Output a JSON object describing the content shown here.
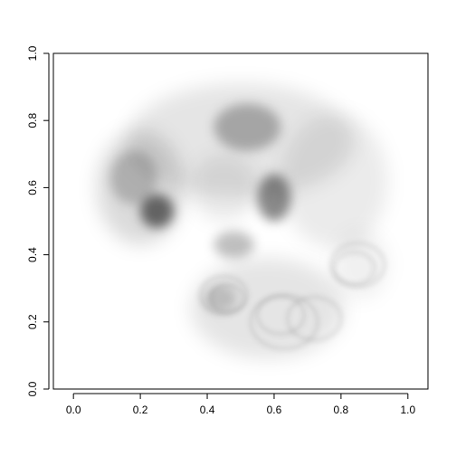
{
  "chart_data": {
    "type": "density",
    "xlim": [
      -0.06,
      1.06
    ],
    "ylim": [
      0.0,
      1.0
    ],
    "x_ticks": [
      0.0,
      0.2,
      0.4,
      0.6,
      0.8,
      1.0
    ],
    "y_ticks": [
      0.0,
      0.2,
      0.4,
      0.6,
      0.8,
      1.0
    ],
    "x_tick_labels": [
      "0.0",
      "0.2",
      "0.4",
      "0.6",
      "0.8",
      "1.0"
    ],
    "y_tick_labels": [
      "0.0",
      "0.2",
      "0.4",
      "0.6",
      "0.8",
      "1.0"
    ],
    "grid": false,
    "legend": "none",
    "colors": {
      "ink": "#000000",
      "axis": "#000000",
      "background": "#ffffff"
    },
    "overall_region": {
      "x_range": [
        0.05,
        0.97
      ],
      "y_range": [
        0.07,
        0.95
      ]
    },
    "dense_regions": [
      {
        "x": 0.52,
        "y": 0.78,
        "rx": 0.1,
        "ry": 0.07,
        "opacity": 0.28
      },
      {
        "x": 0.6,
        "y": 0.57,
        "rx": 0.05,
        "ry": 0.07,
        "opacity": 0.45
      },
      {
        "x": 0.25,
        "y": 0.53,
        "rx": 0.05,
        "ry": 0.05,
        "opacity": 0.55
      },
      {
        "x": 0.18,
        "y": 0.63,
        "rx": 0.07,
        "ry": 0.08,
        "opacity": 0.2
      },
      {
        "x": 0.48,
        "y": 0.43,
        "rx": 0.06,
        "ry": 0.04,
        "opacity": 0.25
      },
      {
        "x": 0.44,
        "y": 0.27,
        "rx": 0.05,
        "ry": 0.04,
        "opacity": 0.18
      }
    ]
  }
}
